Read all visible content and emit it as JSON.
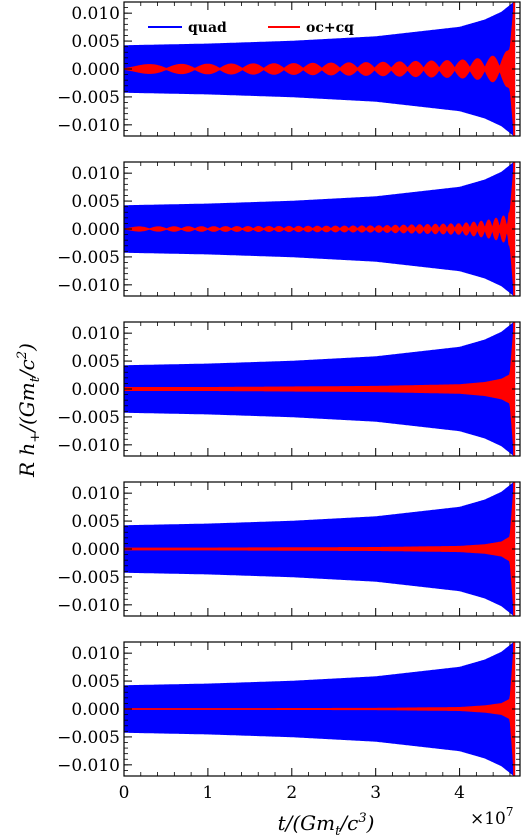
{
  "chart_data": {
    "type": "line",
    "xlabel": "t/(Gm_t/c^3)",
    "ylabel": "R h_+/(Gm_t/c^2)",
    "x_scale_label": "×10^7",
    "xlim": [
      0,
      4.72
    ],
    "ylim": [
      -0.012,
      0.012
    ],
    "x_ticks": [
      0,
      1,
      2,
      3,
      4
    ],
    "x_tick_labels": [
      "0",
      "1",
      "2",
      "3",
      "4"
    ],
    "y_ticks": [
      0.01,
      0.005,
      0.0,
      -0.005,
      -0.01
    ],
    "y_tick_labels": [
      "0.010",
      "0.005",
      "0.000",
      "−0.005",
      "−0.010"
    ],
    "legend": {
      "placement": "top",
      "entries": [
        "quad",
        "oc+cq"
      ]
    },
    "colors": {
      "quad": "#0000ff",
      "oc+cq": "#ff0000"
    },
    "panels": [
      {
        "series": [
          {
            "name": "quad",
            "envelope_t": [
              0,
              1,
              2,
              3,
              4,
              4.3,
              4.5,
              4.6,
              4.65
            ],
            "envelope_amp": [
              0.0042,
              0.0045,
              0.005,
              0.0058,
              0.0075,
              0.0088,
              0.0102,
              0.0114,
              0.012
            ]
          },
          {
            "name": "oc+cq",
            "envelope_t": [
              0,
              1,
              2,
              3,
              4,
              4.3,
              4.5,
              4.6,
              4.65
            ],
            "envelope_amp": [
              0.0008,
              0.0009,
              0.001,
              0.0012,
              0.0016,
              0.002,
              0.0027,
              0.0035,
              0.012
            ],
            "beat_count": 20
          }
        ]
      },
      {
        "series": [
          {
            "name": "quad",
            "envelope_t": [
              0,
              1,
              2,
              3,
              4,
              4.3,
              4.5,
              4.6,
              4.65
            ],
            "envelope_amp": [
              0.0042,
              0.0045,
              0.005,
              0.0058,
              0.0075,
              0.0088,
              0.0102,
              0.0114,
              0.012
            ]
          },
          {
            "name": "oc+cq",
            "envelope_t": [
              0,
              1,
              2,
              3,
              4,
              4.3,
              4.5,
              4.6,
              4.65
            ],
            "envelope_amp": [
              0.0004,
              0.00045,
              0.0005,
              0.0006,
              0.001,
              0.0015,
              0.0022,
              0.003,
              0.012
            ],
            "beat_count": 40
          }
        ]
      },
      {
        "series": [
          {
            "name": "quad",
            "envelope_t": [
              0,
              1,
              2,
              3,
              4,
              4.3,
              4.5,
              4.6,
              4.65
            ],
            "envelope_amp": [
              0.0042,
              0.0045,
              0.005,
              0.0058,
              0.0075,
              0.0088,
              0.0102,
              0.0114,
              0.012
            ]
          },
          {
            "name": "oc+cq",
            "envelope_t": [
              0,
              1,
              2,
              3,
              4,
              4.3,
              4.5,
              4.6,
              4.65
            ],
            "envelope_amp": [
              0.0003,
              0.0003,
              0.0004,
              0.0005,
              0.0008,
              0.0012,
              0.0018,
              0.0026,
              0.012
            ],
            "beat_count": 0
          }
        ]
      },
      {
        "series": [
          {
            "name": "quad",
            "envelope_t": [
              0,
              1,
              2,
              3,
              4,
              4.3,
              4.5,
              4.6,
              4.65
            ],
            "envelope_amp": [
              0.0042,
              0.0045,
              0.005,
              0.0058,
              0.0075,
              0.0088,
              0.0102,
              0.0114,
              0.012
            ]
          },
          {
            "name": "oc+cq",
            "envelope_t": [
              0,
              1,
              2,
              3,
              4,
              4.3,
              4.5,
              4.6,
              4.65
            ],
            "envelope_amp": [
              0.0002,
              0.0002,
              0.00025,
              0.0003,
              0.0005,
              0.0008,
              0.0013,
              0.0022,
              0.012
            ],
            "beat_count": 0
          }
        ]
      },
      {
        "series": [
          {
            "name": "quad",
            "envelope_t": [
              0,
              1,
              2,
              3,
              4,
              4.3,
              4.5,
              4.6,
              4.65
            ],
            "envelope_amp": [
              0.0042,
              0.0045,
              0.005,
              0.0058,
              0.0075,
              0.0088,
              0.0102,
              0.0114,
              0.012
            ]
          },
          {
            "name": "oc+cq",
            "envelope_t": [
              0,
              1,
              2,
              3,
              4,
              4.3,
              4.5,
              4.6,
              4.65
            ],
            "envelope_amp": [
              0.0001,
              0.0001,
              0.00012,
              0.00015,
              0.0003,
              0.0006,
              0.001,
              0.0018,
              0.012
            ],
            "beat_count": 0
          }
        ]
      }
    ]
  }
}
